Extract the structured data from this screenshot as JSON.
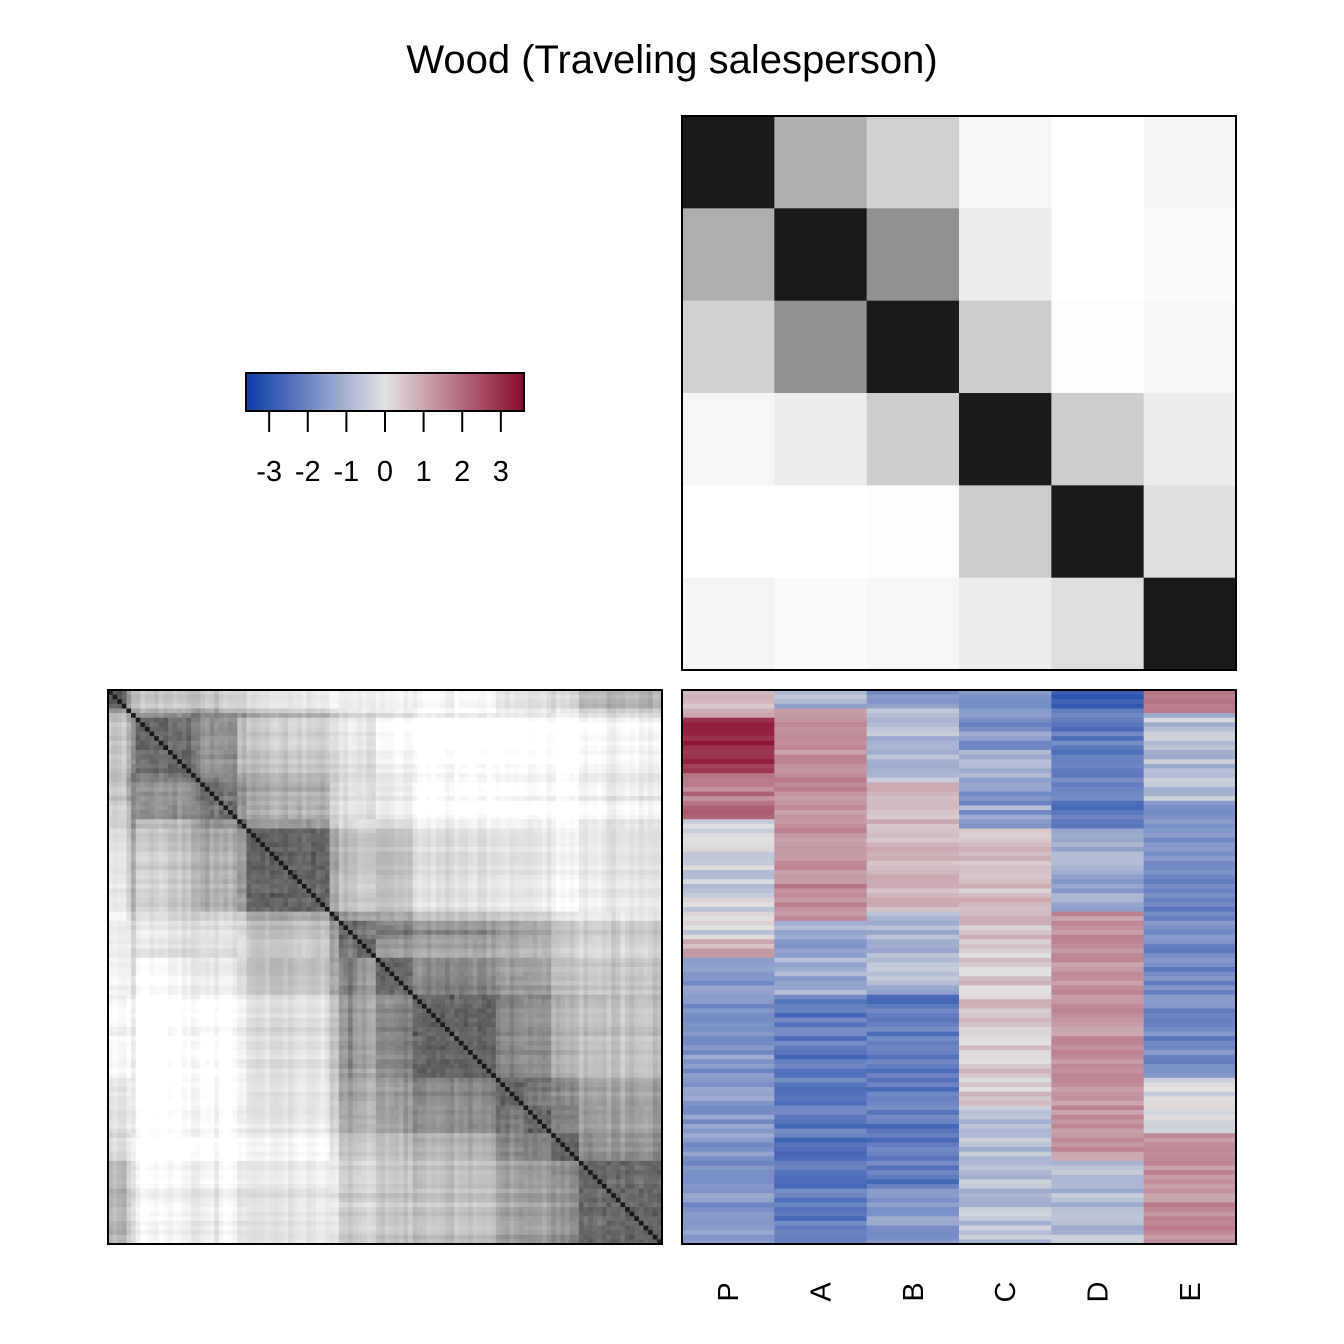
{
  "title": "Wood (Traveling salesperson)",
  "colors": {
    "low": "#0d3aa8",
    "mid": "#e2e2e2",
    "high": "#8b0a2b",
    "dissim_dark": "#1a1a1a",
    "dissim_light": "#ffffff"
  },
  "chart_data": [
    {
      "type": "heatmap",
      "name": "legend",
      "ticks": [
        -3,
        -2,
        -1,
        0,
        1,
        2,
        3
      ],
      "range": [
        -3.6,
        3.6
      ]
    },
    {
      "type": "heatmap",
      "name": "variable-dissimilarity",
      "rows": [
        "P",
        "A",
        "B",
        "C",
        "D",
        "E"
      ],
      "cols": [
        "P",
        "A",
        "B",
        "C",
        "D",
        "E"
      ],
      "values": [
        [
          0.0,
          0.65,
          0.8,
          0.96,
          1.0,
          0.95
        ],
        [
          0.65,
          0.0,
          0.52,
          0.92,
          1.0,
          0.98
        ],
        [
          0.8,
          0.52,
          0.0,
          0.78,
          0.99,
          0.96
        ],
        [
          0.96,
          0.92,
          0.78,
          0.0,
          0.78,
          0.92
        ],
        [
          1.0,
          1.0,
          0.99,
          0.78,
          0.0,
          0.86
        ],
        [
          0.95,
          0.98,
          0.96,
          0.92,
          0.86,
          0.0
        ]
      ]
    },
    {
      "type": "heatmap",
      "name": "object-dissimilarity",
      "n": 120,
      "grid": false
    },
    {
      "type": "heatmap",
      "name": "data-matrix",
      "columns": [
        "P",
        "A",
        "B",
        "C",
        "D",
        "E"
      ],
      "rows": 120,
      "value_range": [
        -3.6,
        3.6
      ]
    }
  ]
}
